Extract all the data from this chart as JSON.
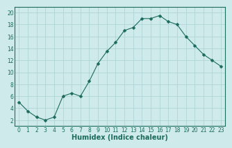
{
  "x": [
    0,
    1,
    2,
    3,
    4,
    5,
    6,
    7,
    8,
    9,
    10,
    11,
    12,
    13,
    14,
    15,
    16,
    17,
    18,
    19,
    20,
    21,
    22,
    23
  ],
  "y": [
    5,
    3.5,
    2.5,
    2,
    2.5,
    6,
    6.5,
    6,
    8.5,
    11.5,
    13.5,
    15,
    17,
    17.5,
    19,
    19,
    19.5,
    18.5,
    18,
    16,
    14.5,
    13,
    12,
    11
  ],
  "line_color": "#1a6b5c",
  "marker": "D",
  "marker_size": 2.5,
  "bg_color": "#ceeaea",
  "grid_color": "#b0d4d4",
  "xlabel": "Humidex (Indice chaleur)",
  "xlim": [
    -0.5,
    23.5
  ],
  "ylim": [
    1,
    21
  ],
  "yticks": [
    2,
    4,
    6,
    8,
    10,
    12,
    14,
    16,
    18,
    20
  ],
  "xticks": [
    0,
    1,
    2,
    3,
    4,
    5,
    6,
    7,
    8,
    9,
    10,
    11,
    12,
    13,
    14,
    15,
    16,
    17,
    18,
    19,
    20,
    21,
    22,
    23
  ],
  "label_fontsize": 7,
  "tick_fontsize": 5.5
}
